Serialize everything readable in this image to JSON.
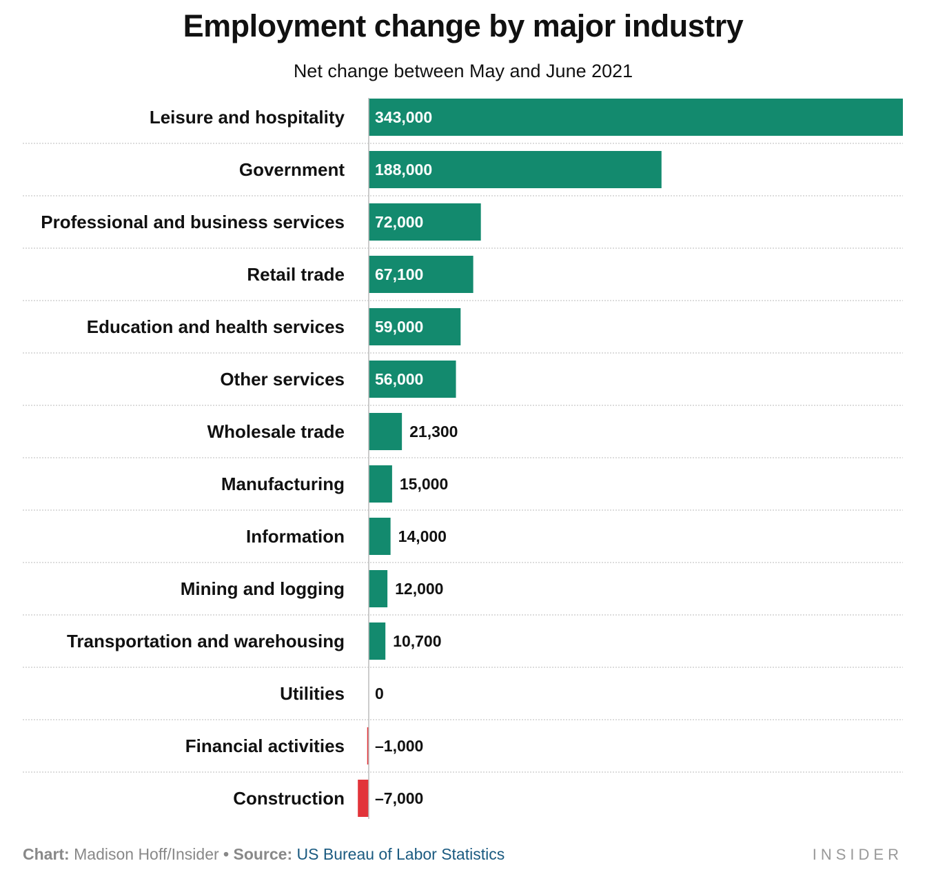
{
  "title": "Employment change by major industry",
  "subtitle": "Net change between May and June 2021",
  "colors": {
    "positive": "#138a6e",
    "negative": "#e2343a",
    "gridline": "#c8c8c8",
    "axis": "#bbbbbb"
  },
  "chart_data": {
    "type": "bar",
    "orientation": "horizontal",
    "title": "Employment change by major industry",
    "subtitle": "Net change between May and June 2021",
    "categories": [
      "Leisure and hospitality",
      "Government",
      "Professional and business services",
      "Retail trade",
      "Education and health services",
      "Other services",
      "Wholesale trade",
      "Manufacturing",
      "Information",
      "Mining and logging",
      "Transportation and warehousing",
      "Utilities",
      "Financial activities",
      "Construction"
    ],
    "values": [
      343000,
      188000,
      72000,
      67100,
      59000,
      56000,
      21300,
      15000,
      14000,
      12000,
      10700,
      0,
      -1000,
      -7000
    ],
    "value_labels": [
      "343,000",
      "188,000",
      "72,000",
      "67,100",
      "59,000",
      "56,000",
      "21,300",
      "15,000",
      "14,000",
      "12,000",
      "10,700",
      "0",
      "–1,000",
      "–7,000"
    ],
    "xlim": [
      -7000,
      343000
    ],
    "grid": true
  },
  "footer": {
    "chart_lead": "Chart:",
    "chart_author": "Madison Hoff/Insider",
    "separator": "•",
    "source_lead": "Source:",
    "source_name": "US Bureau of Labor Statistics"
  },
  "brand": "INSIDER"
}
